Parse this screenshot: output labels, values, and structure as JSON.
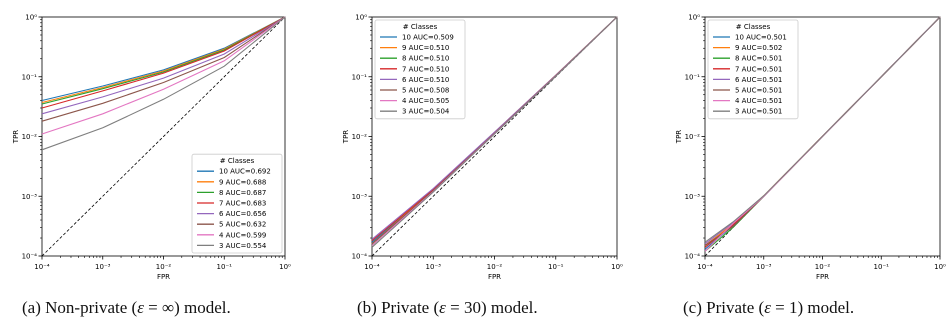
{
  "figure": {
    "captions": [
      {
        "label": "(a)",
        "pre": "Non-private (",
        "eps": "ε",
        "rel": " = ∞",
        "post": ") model."
      },
      {
        "label": "(b)",
        "pre": "Private (",
        "eps": "ε",
        "rel": " = 30",
        "post": ") model."
      },
      {
        "label": "(c)",
        "pre": "Private (",
        "eps": "ε",
        "rel": " = 1",
        "post": ") model."
      }
    ]
  },
  "chart_data": [
    {
      "type": "line",
      "xlabel": "FPR",
      "ylabel": "TPR",
      "xscale": "log",
      "yscale": "log",
      "xlim": [
        0.0001,
        1
      ],
      "ylim": [
        0.0001,
        1
      ],
      "xticks": [
        "10⁻⁴",
        "10⁻³",
        "10⁻²",
        "10⁻¹",
        "10⁰"
      ],
      "yticks": [
        "10⁻⁴",
        "10⁻³",
        "10⁻²",
        "10⁻¹",
        "10⁰"
      ],
      "legend_title": "# Classes",
      "legend_position": "lower-right",
      "diagonal": true,
      "series": [
        {
          "name": "10 AUC=0.692",
          "color": "#1f77b4",
          "x": [
            0.0001,
            0.001,
            0.01,
            0.1,
            1
          ],
          "y": [
            0.04,
            0.07,
            0.13,
            0.3,
            1
          ]
        },
        {
          "name": "9 AUC=0.688",
          "color": "#ff7f0e",
          "x": [
            0.0001,
            0.001,
            0.01,
            0.1,
            1
          ],
          "y": [
            0.037,
            0.066,
            0.125,
            0.29,
            1
          ]
        },
        {
          "name": "8 AUC=0.687",
          "color": "#2ca02c",
          "x": [
            0.0001,
            0.001,
            0.01,
            0.1,
            1
          ],
          "y": [
            0.035,
            0.063,
            0.12,
            0.28,
            1
          ]
        },
        {
          "name": "7 AUC=0.683",
          "color": "#d62728",
          "x": [
            0.0001,
            0.001,
            0.01,
            0.1,
            1
          ],
          "y": [
            0.03,
            0.058,
            0.115,
            0.27,
            1
          ]
        },
        {
          "name": "6 AUC=0.656",
          "color": "#9467bd",
          "x": [
            0.0001,
            0.001,
            0.01,
            0.1,
            1
          ],
          "y": [
            0.024,
            0.046,
            0.095,
            0.24,
            1
          ]
        },
        {
          "name": "5 AUC=0.632",
          "color": "#8c564b",
          "x": [
            0.0001,
            0.001,
            0.01,
            0.1,
            1
          ],
          "y": [
            0.018,
            0.036,
            0.08,
            0.21,
            1
          ]
        },
        {
          "name": "4 AUC=0.599",
          "color": "#e377c2",
          "x": [
            0.0001,
            0.001,
            0.01,
            0.1,
            1
          ],
          "y": [
            0.011,
            0.024,
            0.062,
            0.185,
            1
          ]
        },
        {
          "name": "3 AUC=0.554",
          "color": "#7f7f7f",
          "x": [
            0.0001,
            0.001,
            0.01,
            0.1,
            1
          ],
          "y": [
            0.006,
            0.014,
            0.042,
            0.15,
            1
          ]
        }
      ]
    },
    {
      "type": "line",
      "xlabel": "FPR",
      "ylabel": "TPR",
      "xscale": "log",
      "yscale": "log",
      "xlim": [
        0.0001,
        1
      ],
      "ylim": [
        0.0001,
        1
      ],
      "xticks": [
        "10⁻⁴",
        "10⁻³",
        "10⁻²",
        "10⁻¹",
        "10⁰"
      ],
      "yticks": [
        "10⁻⁴",
        "10⁻³",
        "10⁻²",
        "10⁻¹",
        "10⁰"
      ],
      "legend_title": "# Classes",
      "legend_position": "upper-left",
      "diagonal": true,
      "series": [
        {
          "name": "10 AUC=0.509",
          "color": "#1f77b4",
          "x": [
            0.0001,
            0.001,
            0.01,
            0.1,
            1
          ],
          "y": [
            0.00017,
            0.0013,
            0.0115,
            0.105,
            1
          ]
        },
        {
          "name": "9 AUC=0.510",
          "color": "#ff7f0e",
          "x": [
            0.0001,
            0.001,
            0.01,
            0.1,
            1
          ],
          "y": [
            0.00016,
            0.0013,
            0.0117,
            0.106,
            1
          ]
        },
        {
          "name": "8 AUC=0.510",
          "color": "#2ca02c",
          "x": [
            0.0001,
            0.001,
            0.01,
            0.1,
            1
          ],
          "y": [
            0.00015,
            0.00125,
            0.0114,
            0.105,
            1
          ]
        },
        {
          "name": "7 AUC=0.510",
          "color": "#d62728",
          "x": [
            0.0001,
            0.001,
            0.01,
            0.1,
            1
          ],
          "y": [
            0.00018,
            0.0013,
            0.0116,
            0.105,
            1
          ]
        },
        {
          "name": "6 AUC=0.510",
          "color": "#9467bd",
          "x": [
            0.0001,
            0.001,
            0.01,
            0.1,
            1
          ],
          "y": [
            0.00019,
            0.00135,
            0.0118,
            0.106,
            1
          ]
        },
        {
          "name": "5 AUC=0.508",
          "color": "#8c564b",
          "x": [
            0.0001,
            0.001,
            0.01,
            0.1,
            1
          ],
          "y": [
            0.00016,
            0.00125,
            0.0113,
            0.104,
            1
          ]
        },
        {
          "name": "4 AUC=0.505",
          "color": "#e377c2",
          "x": [
            0.0001,
            0.001,
            0.01,
            0.1,
            1
          ],
          "y": [
            0.00015,
            0.0012,
            0.0111,
            0.103,
            1
          ]
        },
        {
          "name": "3 AUC=0.504",
          "color": "#7f7f7f",
          "x": [
            0.0001,
            0.001,
            0.01,
            0.1,
            1
          ],
          "y": [
            0.00014,
            0.00118,
            0.011,
            0.102,
            1
          ]
        }
      ]
    },
    {
      "type": "line",
      "xlabel": "FPR",
      "ylabel": "TPR",
      "xscale": "log",
      "yscale": "log",
      "xlim": [
        0.0001,
        1
      ],
      "ylim": [
        0.0001,
        1
      ],
      "xticks": [
        "10⁻⁴",
        "10⁻³",
        "10⁻²",
        "10⁻¹",
        "10⁰"
      ],
      "yticks": [
        "10⁻⁴",
        "10⁻³",
        "10⁻²",
        "10⁻¹",
        "10⁰"
      ],
      "legend_title": "# Classes",
      "legend_position": "upper-left",
      "diagonal": true,
      "series": [
        {
          "name": "10 AUC=0.501",
          "color": "#1f77b4",
          "x": [
            0.0001,
            0.0003,
            0.001,
            0.01,
            0.1,
            1
          ],
          "y": [
            0.00013,
            0.00032,
            0.001,
            0.0101,
            0.1,
            1
          ]
        },
        {
          "name": "9 AUC=0.502",
          "color": "#ff7f0e",
          "x": [
            0.0001,
            0.0003,
            0.001,
            0.01,
            0.1,
            1
          ],
          "y": [
            0.00015,
            0.00034,
            0.00102,
            0.0101,
            0.1,
            1
          ]
        },
        {
          "name": "8 AUC=0.501",
          "color": "#2ca02c",
          "x": [
            0.0001,
            0.0003,
            0.001,
            0.01,
            0.1,
            1
          ],
          "y": [
            0.00012,
            0.0003,
            0.001,
            0.01,
            0.1,
            1
          ]
        },
        {
          "name": "7 AUC=0.501",
          "color": "#d62728",
          "x": [
            0.0001,
            0.0003,
            0.001,
            0.01,
            0.1,
            1
          ],
          "y": [
            0.00014,
            0.00033,
            0.00101,
            0.0101,
            0.1,
            1
          ]
        },
        {
          "name": "6 AUC=0.501",
          "color": "#9467bd",
          "x": [
            0.0001,
            0.0003,
            0.001,
            0.01,
            0.1,
            1
          ],
          "y": [
            0.00016,
            0.00036,
            0.00101,
            0.01,
            0.1,
            1
          ]
        },
        {
          "name": "5 AUC=0.501",
          "color": "#8c564b",
          "x": [
            0.0001,
            0.0003,
            0.001,
            0.01,
            0.1,
            1
          ],
          "y": [
            0.00015,
            0.00031,
            0.001,
            0.01,
            0.1,
            1
          ]
        },
        {
          "name": "4 AUC=0.501",
          "color": "#e377c2",
          "x": [
            0.0001,
            0.0003,
            0.001,
            0.01,
            0.1,
            1
          ],
          "y": [
            0.00012,
            0.00035,
            0.001,
            0.01,
            0.1,
            1
          ]
        },
        {
          "name": "3 AUC=0.501",
          "color": "#7f7f7f",
          "x": [
            0.0001,
            0.0003,
            0.001,
            0.01,
            0.1,
            1
          ],
          "y": [
            0.00017,
            0.00037,
            0.00102,
            0.0101,
            0.1,
            1
          ]
        }
      ]
    }
  ]
}
